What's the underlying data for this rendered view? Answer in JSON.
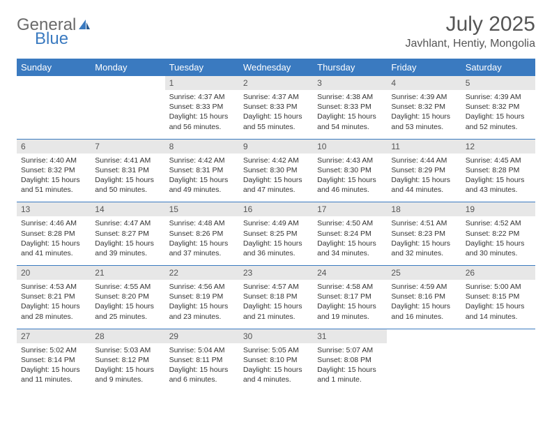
{
  "brand": {
    "general": "General",
    "blue": "Blue"
  },
  "title": "July 2025",
  "location": "Javhlant, Hentiy, Mongolia",
  "colors": {
    "header_bg": "#3a7ac0",
    "header_text": "#ffffff",
    "daynum_bg": "#e7e7e7",
    "text": "#333333",
    "rule": "#3a7ac0",
    "page_bg": "#ffffff"
  },
  "day_headers": [
    "Sunday",
    "Monday",
    "Tuesday",
    "Wednesday",
    "Thursday",
    "Friday",
    "Saturday"
  ],
  "weeks": [
    [
      null,
      null,
      {
        "n": "1",
        "sunrise": "4:37 AM",
        "sunset": "8:33 PM",
        "daylight": "15 hours and 56 minutes."
      },
      {
        "n": "2",
        "sunrise": "4:37 AM",
        "sunset": "8:33 PM",
        "daylight": "15 hours and 55 minutes."
      },
      {
        "n": "3",
        "sunrise": "4:38 AM",
        "sunset": "8:33 PM",
        "daylight": "15 hours and 54 minutes."
      },
      {
        "n": "4",
        "sunrise": "4:39 AM",
        "sunset": "8:32 PM",
        "daylight": "15 hours and 53 minutes."
      },
      {
        "n": "5",
        "sunrise": "4:39 AM",
        "sunset": "8:32 PM",
        "daylight": "15 hours and 52 minutes."
      }
    ],
    [
      {
        "n": "6",
        "sunrise": "4:40 AM",
        "sunset": "8:32 PM",
        "daylight": "15 hours and 51 minutes."
      },
      {
        "n": "7",
        "sunrise": "4:41 AM",
        "sunset": "8:31 PM",
        "daylight": "15 hours and 50 minutes."
      },
      {
        "n": "8",
        "sunrise": "4:42 AM",
        "sunset": "8:31 PM",
        "daylight": "15 hours and 49 minutes."
      },
      {
        "n": "9",
        "sunrise": "4:42 AM",
        "sunset": "8:30 PM",
        "daylight": "15 hours and 47 minutes."
      },
      {
        "n": "10",
        "sunrise": "4:43 AM",
        "sunset": "8:30 PM",
        "daylight": "15 hours and 46 minutes."
      },
      {
        "n": "11",
        "sunrise": "4:44 AM",
        "sunset": "8:29 PM",
        "daylight": "15 hours and 44 minutes."
      },
      {
        "n": "12",
        "sunrise": "4:45 AM",
        "sunset": "8:28 PM",
        "daylight": "15 hours and 43 minutes."
      }
    ],
    [
      {
        "n": "13",
        "sunrise": "4:46 AM",
        "sunset": "8:28 PM",
        "daylight": "15 hours and 41 minutes."
      },
      {
        "n": "14",
        "sunrise": "4:47 AM",
        "sunset": "8:27 PM",
        "daylight": "15 hours and 39 minutes."
      },
      {
        "n": "15",
        "sunrise": "4:48 AM",
        "sunset": "8:26 PM",
        "daylight": "15 hours and 37 minutes."
      },
      {
        "n": "16",
        "sunrise": "4:49 AM",
        "sunset": "8:25 PM",
        "daylight": "15 hours and 36 minutes."
      },
      {
        "n": "17",
        "sunrise": "4:50 AM",
        "sunset": "8:24 PM",
        "daylight": "15 hours and 34 minutes."
      },
      {
        "n": "18",
        "sunrise": "4:51 AM",
        "sunset": "8:23 PM",
        "daylight": "15 hours and 32 minutes."
      },
      {
        "n": "19",
        "sunrise": "4:52 AM",
        "sunset": "8:22 PM",
        "daylight": "15 hours and 30 minutes."
      }
    ],
    [
      {
        "n": "20",
        "sunrise": "4:53 AM",
        "sunset": "8:21 PM",
        "daylight": "15 hours and 28 minutes."
      },
      {
        "n": "21",
        "sunrise": "4:55 AM",
        "sunset": "8:20 PM",
        "daylight": "15 hours and 25 minutes."
      },
      {
        "n": "22",
        "sunrise": "4:56 AM",
        "sunset": "8:19 PM",
        "daylight": "15 hours and 23 minutes."
      },
      {
        "n": "23",
        "sunrise": "4:57 AM",
        "sunset": "8:18 PM",
        "daylight": "15 hours and 21 minutes."
      },
      {
        "n": "24",
        "sunrise": "4:58 AM",
        "sunset": "8:17 PM",
        "daylight": "15 hours and 19 minutes."
      },
      {
        "n": "25",
        "sunrise": "4:59 AM",
        "sunset": "8:16 PM",
        "daylight": "15 hours and 16 minutes."
      },
      {
        "n": "26",
        "sunrise": "5:00 AM",
        "sunset": "8:15 PM",
        "daylight": "15 hours and 14 minutes."
      }
    ],
    [
      {
        "n": "27",
        "sunrise": "5:02 AM",
        "sunset": "8:14 PM",
        "daylight": "15 hours and 11 minutes."
      },
      {
        "n": "28",
        "sunrise": "5:03 AM",
        "sunset": "8:12 PM",
        "daylight": "15 hours and 9 minutes."
      },
      {
        "n": "29",
        "sunrise": "5:04 AM",
        "sunset": "8:11 PM",
        "daylight": "15 hours and 6 minutes."
      },
      {
        "n": "30",
        "sunrise": "5:05 AM",
        "sunset": "8:10 PM",
        "daylight": "15 hours and 4 minutes."
      },
      {
        "n": "31",
        "sunrise": "5:07 AM",
        "sunset": "8:08 PM",
        "daylight": "15 hours and 1 minute."
      },
      null,
      null
    ]
  ],
  "labels": {
    "sunrise": "Sunrise:",
    "sunset": "Sunset:",
    "daylight": "Daylight:"
  }
}
